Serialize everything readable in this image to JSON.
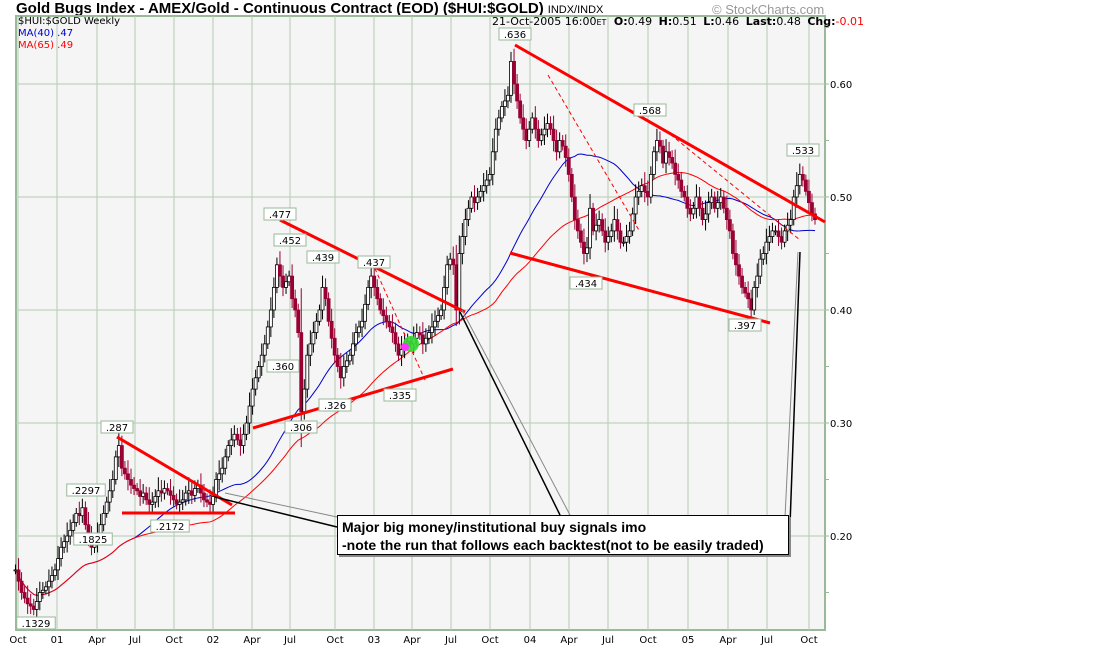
{
  "header": {
    "title": "Gold Bugs Index - AMEX/Gold - Continuous Contract (EOD) ($HUI:$GOLD)",
    "exchange": "INDX/INDX",
    "copyright": "© StockCharts.com",
    "symbol_period": "$HUI:$GOLD Weekly",
    "ma40_label": "MA(40) .47",
    "ma65_label": "MA(65) .49",
    "date": "21-Oct-2005 16:00",
    "tz": "ET",
    "open_label": "O:",
    "open": "0.49",
    "high_label": "H:",
    "high": "0.51",
    "low_label": "L:",
    "low": "0.46",
    "last_label": "Last:",
    "last": "0.48",
    "chg_label": "Chg:",
    "chg": "-0.01"
  },
  "note": {
    "line1": "Major big money/institutional buy signals imo",
    "line2": "-note the run that follows each backtest(not to be easily traded)"
  },
  "chart_data": {
    "type": "candlestick",
    "period": "Weekly",
    "last_date": "21-Oct-2005",
    "ylim": [
      0.12,
      0.66
    ],
    "y_ticks": [
      "0.60",
      "0.50",
      "0.40",
      "0.30",
      "0.20"
    ],
    "x_ticks": [
      "Oct",
      "01",
      "Apr",
      "Jul",
      "Oct",
      "02",
      "Apr",
      "Jul",
      "Oct",
      "03",
      "Apr",
      "Jul",
      "Oct",
      "04",
      "Apr",
      "Jul",
      "Oct",
      "05",
      "Apr",
      "Jul",
      "Oct"
    ],
    "grid": true,
    "moving_averages": [
      {
        "name": "MA(40)",
        "period": 40,
        "color": "#0000cc"
      },
      {
        "name": "MA(65)",
        "period": 65,
        "color": "#ff0000"
      }
    ],
    "colors": {
      "up": "#ffffff",
      "down": "#990033",
      "grid": "#b4ccb4",
      "trendline": "#ff0000"
    },
    "closes": [
      0.17,
      0.16,
      0.15,
      0.145,
      0.14,
      0.138,
      0.135,
      0.142,
      0.15,
      0.152,
      0.155,
      0.16,
      0.165,
      0.17,
      0.18,
      0.19,
      0.195,
      0.2,
      0.205,
      0.212,
      0.22,
      0.218,
      0.225,
      0.21,
      0.2,
      0.19,
      0.195,
      0.2,
      0.21,
      0.22,
      0.23,
      0.24,
      0.25,
      0.27,
      0.28,
      0.26,
      0.255,
      0.25,
      0.245,
      0.242,
      0.24,
      0.235,
      0.238,
      0.232,
      0.228,
      0.23,
      0.235,
      0.24,
      0.238,
      0.242,
      0.24,
      0.236,
      0.232,
      0.228,
      0.23,
      0.232,
      0.238,
      0.24,
      0.236,
      0.242,
      0.245,
      0.238,
      0.232,
      0.23,
      0.228,
      0.235,
      0.25,
      0.255,
      0.26,
      0.27,
      0.28,
      0.285,
      0.29,
      0.285,
      0.28,
      0.29,
      0.3,
      0.315,
      0.33,
      0.34,
      0.35,
      0.36,
      0.37,
      0.385,
      0.4,
      0.42,
      0.44,
      0.43,
      0.42,
      0.425,
      0.43,
      0.41,
      0.4,
      0.38,
      0.31,
      0.33,
      0.36,
      0.37,
      0.38,
      0.39,
      0.4,
      0.42,
      0.41,
      0.39,
      0.375,
      0.36,
      0.35,
      0.34,
      0.35,
      0.355,
      0.36,
      0.37,
      0.38,
      0.385,
      0.39,
      0.405,
      0.42,
      0.43,
      0.42,
      0.41,
      0.4,
      0.395,
      0.39,
      0.385,
      0.38,
      0.37,
      0.36,
      0.365,
      0.37,
      0.372,
      0.37,
      0.375,
      0.38,
      0.378,
      0.37,
      0.375,
      0.38,
      0.385,
      0.39,
      0.395,
      0.4,
      0.42,
      0.44,
      0.445,
      0.44,
      0.4,
      0.45,
      0.465,
      0.48,
      0.49,
      0.5,
      0.495,
      0.5,
      0.505,
      0.51,
      0.515,
      0.52,
      0.54,
      0.56,
      0.57,
      0.58,
      0.585,
      0.59,
      0.62,
      0.6,
      0.585,
      0.57,
      0.56,
      0.55,
      0.56,
      0.57,
      0.56,
      0.55,
      0.555,
      0.56,
      0.565,
      0.56,
      0.55,
      0.54,
      0.55,
      0.545,
      0.535,
      0.52,
      0.5,
      0.48,
      0.47,
      0.46,
      0.45,
      0.455,
      0.49,
      0.47,
      0.475,
      0.48,
      0.47,
      0.46,
      0.465,
      0.47,
      0.48,
      0.47,
      0.46,
      0.46,
      0.465,
      0.47,
      0.485,
      0.5,
      0.505,
      0.51,
      0.505,
      0.5,
      0.52,
      0.54,
      0.55,
      0.545,
      0.53,
      0.54,
      0.535,
      0.53,
      0.52,
      0.515,
      0.505,
      0.5,
      0.49,
      0.485,
      0.49,
      0.5,
      0.49,
      0.48,
      0.485,
      0.495,
      0.5,
      0.49,
      0.495,
      0.5,
      0.49,
      0.48,
      0.47,
      0.45,
      0.44,
      0.43,
      0.42,
      0.415,
      0.41,
      0.4,
      0.42,
      0.43,
      0.445,
      0.45,
      0.46,
      0.465,
      0.47,
      0.47,
      0.465,
      0.46,
      0.47,
      0.475,
      0.48,
      0.5,
      0.51,
      0.52,
      0.515,
      0.505,
      0.495,
      0.485,
      0.48
    ],
    "annotations": [
      ".636",
      ".568",
      ".533",
      ".477",
      ".452",
      ".439",
      ".437",
      ".360",
      ".306",
      ".326",
      ".335",
      ".434",
      ".397",
      ".287",
      ".2297",
      ".2172",
      ".1825",
      ".1329"
    ]
  }
}
